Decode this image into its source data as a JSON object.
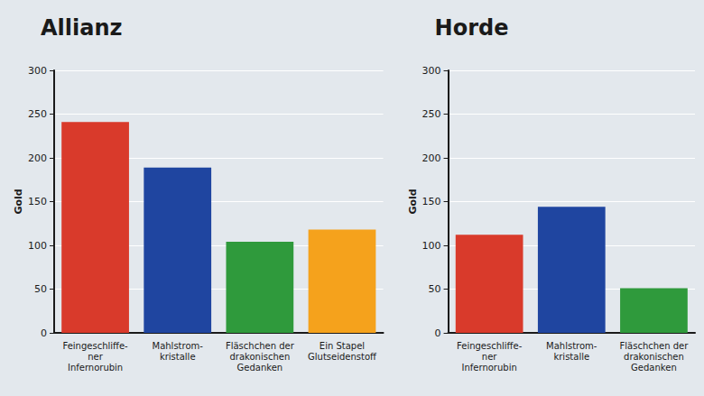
{
  "chart_data": [
    {
      "type": "bar",
      "title": "Allianz",
      "categories": [
        "Feingeschliffe-\nner Infernorubin",
        "Mahlstrom-\nkristalle",
        "Fläschchen der\ndrakonischen Gedanken",
        "Ein Stapel\nGlutseidenstoff"
      ],
      "values": [
        241,
        189,
        104,
        118
      ],
      "colors": [
        "#d93a2b",
        "#1f45a0",
        "#2f9a3c",
        "#f5a21c"
      ],
      "ylabel": "Gold",
      "ylim": [
        0,
        300
      ],
      "yticks": [
        0,
        50,
        100,
        150,
        200,
        250,
        300
      ],
      "grid": true
    },
    {
      "type": "bar",
      "title": "Horde",
      "categories": [
        "Feingeschliffe-\nner Infernorubin",
        "Mahlstrom-\nkristalle",
        "Fläschchen der\ndrakonischen Gedanken"
      ],
      "values": [
        112,
        144,
        51
      ],
      "colors": [
        "#d93a2b",
        "#1f45a0",
        "#2f9a3c"
      ],
      "ylabel": "Gold",
      "ylim": [
        0,
        300
      ],
      "yticks": [
        0,
        50,
        100,
        150,
        200,
        250,
        300
      ],
      "grid": true
    }
  ]
}
